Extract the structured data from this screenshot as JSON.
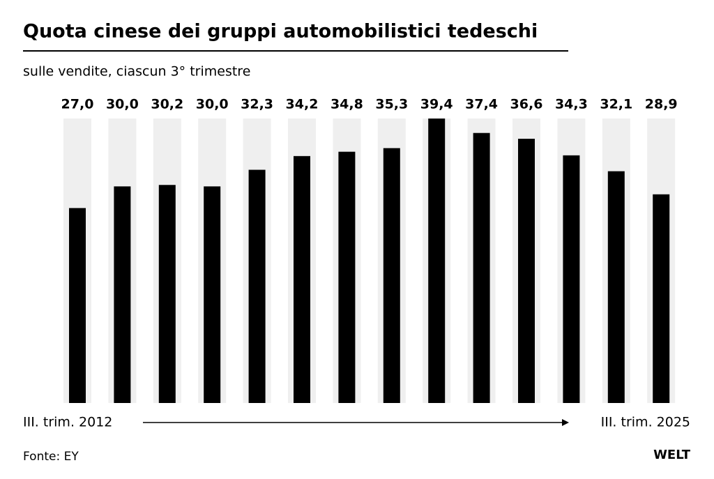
{
  "chart_data": {
    "type": "bar",
    "title": "Quota cinese dei gruppi automobilistici tedeschi",
    "subtitle": "sulle vendite, ciascun 3° trimestre",
    "values": [
      27.0,
      30.0,
      30.2,
      30.0,
      32.3,
      34.2,
      34.8,
      35.3,
      39.4,
      37.4,
      36.6,
      34.3,
      32.1,
      28.9
    ],
    "value_labels": [
      "27,0",
      "30,0",
      "30,2",
      "30,0",
      "32,3",
      "34,2",
      "34,8",
      "35,3",
      "39,4",
      "37,4",
      "36,6",
      "34,3",
      "32,1",
      "28,9"
    ],
    "color": "#000000",
    "background_color": "#efefef",
    "ylim": [
      0,
      39.4
    ],
    "start_label": "III. trim. 2012",
    "end_label": "III. trim. 2025",
    "source": "Fonte: EY",
    "logo": "WELT"
  }
}
